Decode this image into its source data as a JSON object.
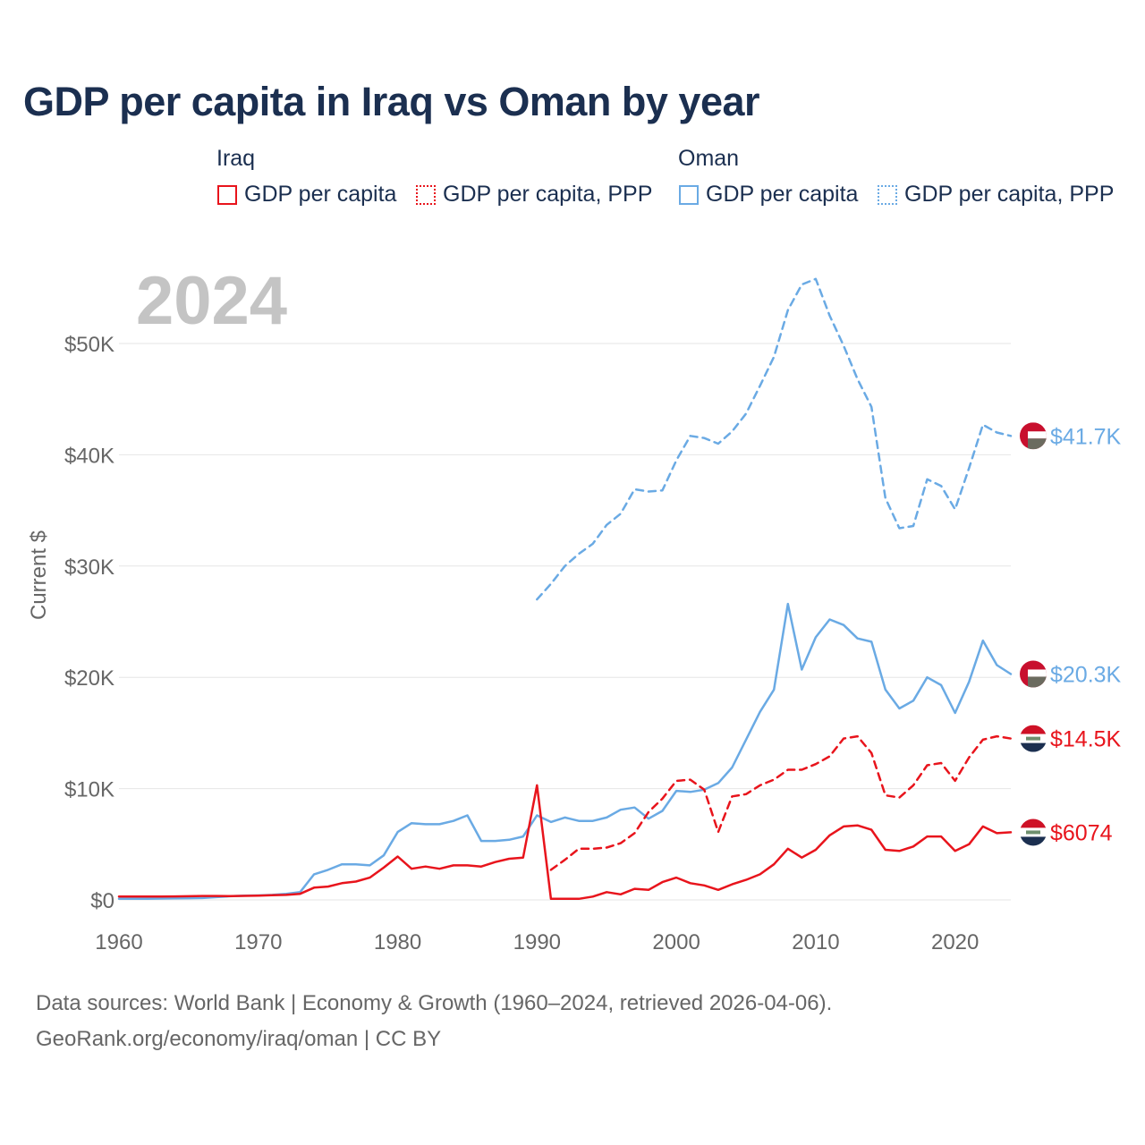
{
  "title": "GDP per capita in Iraq vs Oman by year",
  "legend": {
    "groups": [
      {
        "name": "Iraq",
        "items": [
          {
            "label": "GDP per capita",
            "color": "#e8141c",
            "style": "solid"
          },
          {
            "label": "GDP per capita, PPP",
            "color": "#e8141c",
            "style": "dotted"
          }
        ]
      },
      {
        "name": "Oman",
        "items": [
          {
            "label": "GDP per capita",
            "color": "#6aaae4",
            "style": "solid"
          },
          {
            "label": "GDP per capita, PPP",
            "color": "#6aaae4",
            "style": "dotted"
          }
        ]
      }
    ]
  },
  "footer": {
    "line1": "Data sources: World Bank | Economy & Growth (1960–2024, retrieved 2026-04-06).",
    "line2": "GeoRank.org/economy/iraq/oman | CC BY"
  },
  "colors": {
    "iraq": "#e8141c",
    "oman": "#6aaae4",
    "grid": "#e6e6e6",
    "axis_text": "#666666",
    "year_watermark": "#c4c4c4"
  },
  "chart_data": {
    "type": "line",
    "title": "GDP per capita in Iraq vs Oman by year",
    "year_label": "2024",
    "xlabel": "",
    "ylabel": "Current $",
    "xlim": [
      1960,
      2024
    ],
    "ylim": [
      0,
      55000
    ],
    "x_ticks": [
      1960,
      1970,
      1980,
      1990,
      2000,
      2010,
      2020
    ],
    "y_ticks": [
      {
        "value": 0,
        "label": "$0"
      },
      {
        "value": 10000,
        "label": "$10K"
      },
      {
        "value": 20000,
        "label": "$20K"
      },
      {
        "value": 30000,
        "label": "$30K"
      },
      {
        "value": 40000,
        "label": "$40K"
      },
      {
        "value": 50000,
        "label": "$50K"
      }
    ],
    "series": [
      {
        "name": "Oman GDP per capita, PPP",
        "country": "Oman",
        "color": "#6aaae4",
        "dash": "dashed",
        "end_label": "$41.7K",
        "x": [
          1990,
          1991,
          1992,
          1993,
          1994,
          1995,
          1996,
          1997,
          1998,
          1999,
          2000,
          2001,
          2002,
          2003,
          2004,
          2005,
          2006,
          2007,
          2008,
          2009,
          2010,
          2011,
          2012,
          2013,
          2014,
          2015,
          2016,
          2017,
          2018,
          2019,
          2020,
          2021,
          2022,
          2023,
          2024
        ],
        "values": [
          27000,
          28400,
          30000,
          31100,
          32000,
          33700,
          34700,
          36900,
          36700,
          36800,
          39500,
          41700,
          41500,
          41000,
          42100,
          43700,
          46200,
          48800,
          53000,
          55300,
          55800,
          52500,
          49800,
          46800,
          44300,
          36100,
          33400,
          33600,
          37800,
          37200,
          35100,
          38800,
          42700,
          42000,
          41700
        ]
      },
      {
        "name": "Oman GDP per capita",
        "country": "Oman",
        "color": "#6aaae4",
        "dash": "solid",
        "end_label": "$20.3K",
        "x": [
          1960,
          1961,
          1962,
          1963,
          1964,
          1965,
          1966,
          1967,
          1968,
          1969,
          1970,
          1971,
          1972,
          1973,
          1974,
          1975,
          1976,
          1977,
          1978,
          1979,
          1980,
          1981,
          1982,
          1983,
          1984,
          1985,
          1986,
          1987,
          1988,
          1989,
          1990,
          1991,
          1992,
          1993,
          1994,
          1995,
          1996,
          1997,
          1998,
          1999,
          2000,
          2001,
          2002,
          2003,
          2004,
          2005,
          2006,
          2007,
          2008,
          2009,
          2010,
          2011,
          2012,
          2013,
          2014,
          2015,
          2016,
          2017,
          2018,
          2019,
          2020,
          2021,
          2022,
          2023,
          2024
        ],
        "values": [
          100,
          100,
          100,
          120,
          140,
          150,
          170,
          250,
          330,
          380,
          400,
          450,
          550,
          700,
          2300,
          2700,
          3200,
          3200,
          3100,
          4000,
          6100,
          6900,
          6800,
          6800,
          7100,
          7600,
          5300,
          5300,
          5400,
          5700,
          7600,
          7000,
          7400,
          7100,
          7100,
          7400,
          8100,
          8300,
          7300,
          8000,
          9800,
          9700,
          9900,
          10500,
          11900,
          14400,
          16900,
          18900,
          26600,
          20700,
          23600,
          25200,
          24700,
          23500,
          23200,
          18900,
          17200,
          17900,
          20000,
          19300,
          16800,
          19600,
          23300,
          21100,
          20300
        ]
      },
      {
        "name": "Iraq GDP per capita, PPP",
        "country": "Iraq",
        "color": "#e8141c",
        "dash": "dashed",
        "end_label": "$14.5K",
        "x": [
          1991,
          1992,
          1993,
          1994,
          1995,
          1996,
          1997,
          1998,
          1999,
          2000,
          2001,
          2002,
          2003,
          2004,
          2005,
          2006,
          2007,
          2008,
          2009,
          2010,
          2011,
          2012,
          2013,
          2014,
          2015,
          2016,
          2017,
          2018,
          2019,
          2020,
          2021,
          2022,
          2023,
          2024
        ],
        "values": [
          2700,
          3600,
          4600,
          4600,
          4700,
          5100,
          6000,
          7900,
          9100,
          10700,
          10800,
          9900,
          6100,
          9300,
          9500,
          10300,
          10800,
          11700,
          11700,
          12200,
          12900,
          14500,
          14700,
          13200,
          9400,
          9200,
          10300,
          12100,
          12300,
          10700,
          12800,
          14400,
          14700,
          14500
        ]
      },
      {
        "name": "Iraq GDP per capita",
        "country": "Iraq",
        "color": "#e8141c",
        "dash": "solid",
        "end_label": "$6074",
        "x": [
          1960,
          1961,
          1962,
          1963,
          1964,
          1965,
          1966,
          1967,
          1968,
          1969,
          1970,
          1971,
          1972,
          1973,
          1974,
          1975,
          1976,
          1977,
          1978,
          1979,
          1980,
          1981,
          1982,
          1983,
          1984,
          1985,
          1986,
          1987,
          1988,
          1989,
          1990,
          1991,
          1992,
          1993,
          1994,
          1995,
          1996,
          1997,
          1998,
          1999,
          2000,
          2001,
          2002,
          2003,
          2004,
          2005,
          2006,
          2007,
          2008,
          2009,
          2010,
          2011,
          2012,
          2013,
          2014,
          2015,
          2016,
          2017,
          2018,
          2019,
          2020,
          2021,
          2022,
          2023,
          2024
        ],
        "values": [
          300,
          300,
          300,
          300,
          310,
          330,
          350,
          350,
          340,
          360,
          380,
          420,
          450,
          550,
          1100,
          1200,
          1500,
          1650,
          2000,
          2900,
          3900,
          2800,
          3000,
          2800,
          3100,
          3100,
          3000,
          3400,
          3700,
          3800,
          10300,
          100,
          100,
          100,
          300,
          700,
          500,
          1000,
          900,
          1600,
          2000,
          1500,
          1300,
          900,
          1400,
          1800,
          2300,
          3200,
          4600,
          3800,
          4500,
          5800,
          6600,
          6700,
          6300,
          4500,
          4400,
          4800,
          5700,
          5700,
          4400,
          5000,
          6600,
          6000,
          6074
        ]
      }
    ]
  }
}
